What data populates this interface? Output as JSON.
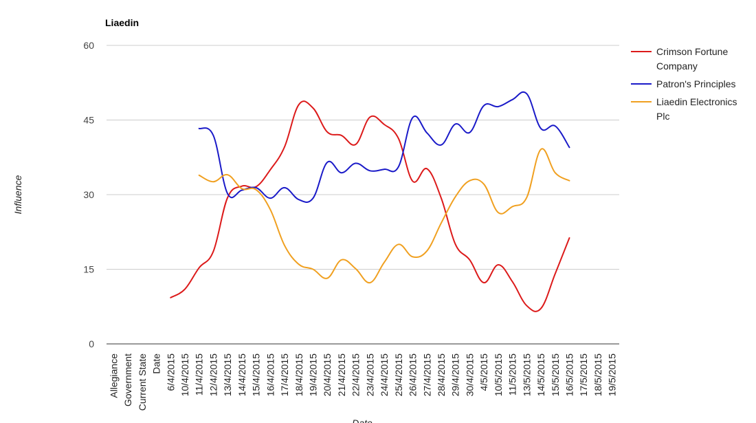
{
  "chart_data": {
    "type": "line",
    "title": "Liaedin",
    "ylabel": "Influence",
    "xlabel": "Date",
    "ylim": [
      0,
      60
    ],
    "yticks": [
      0,
      15,
      30,
      45,
      60
    ],
    "grid": true,
    "legend_position": "right",
    "categories": [
      "Allegiance",
      "Government",
      "Current State",
      "Date",
      "6/4/2015",
      "10/4/2015",
      "11/4/2015",
      "12/4/2015",
      "13/4/2015",
      "14/4/2015",
      "15/4/2015",
      "16/4/2015",
      "17/4/2015",
      "18/4/2015",
      "19/4/2015",
      "20/4/2015",
      "21/4/2015",
      "22/4/2015",
      "23/4/2015",
      "24/4/2015",
      "25/4/2015",
      "26/4/2015",
      "27/4/2015",
      "28/4/2015",
      "29/4/2015",
      "30/4/2015",
      "4/5/2015",
      "10/5/2015",
      "11/5/2015",
      "13/5/2015",
      "14/5/2015",
      "15/5/2015",
      "16/5/2015",
      "17/5/2015",
      "18/5/2015",
      "19/5/2015"
    ],
    "series": [
      {
        "name": "Crimson Fortune Company",
        "color": "#dc1a1a",
        "values": [
          null,
          null,
          null,
          null,
          9.3,
          11.0,
          15.3,
          18.6,
          29.4,
          31.7,
          31.6,
          35.0,
          39.6,
          48.1,
          47.4,
          42.6,
          41.9,
          40.1,
          45.6,
          44.1,
          41.3,
          32.7,
          35.2,
          29.3,
          20.0,
          16.9,
          12.3,
          15.9,
          12.5,
          7.7,
          7.1,
          14.1,
          21.3,
          null,
          null,
          null
        ]
      },
      {
        "name": "Patron's Principles",
        "color": "#1a1ac8",
        "values": [
          null,
          null,
          null,
          null,
          null,
          null,
          43.3,
          41.9,
          30.2,
          30.9,
          31.4,
          29.3,
          31.4,
          29.0,
          29.3,
          36.5,
          34.4,
          36.3,
          34.8,
          35.1,
          35.6,
          45.5,
          42.4,
          40.0,
          44.2,
          42.5,
          47.9,
          47.7,
          49.1,
          50.3,
          43.3,
          43.8,
          39.5,
          null,
          null,
          null
        ]
      },
      {
        "name": "Liaedin Electronics Plc",
        "color": "#f0a020",
        "values": [
          null,
          null,
          null,
          null,
          null,
          null,
          33.9,
          32.6,
          34.0,
          31.2,
          31.0,
          27.0,
          19.8,
          16.0,
          15.0,
          13.2,
          16.9,
          15.1,
          12.3,
          16.4,
          20.0,
          17.5,
          18.7,
          24.3,
          29.6,
          32.8,
          32.1,
          26.4,
          27.6,
          29.4,
          39.1,
          34.4,
          32.8,
          null,
          null,
          null
        ]
      }
    ]
  }
}
